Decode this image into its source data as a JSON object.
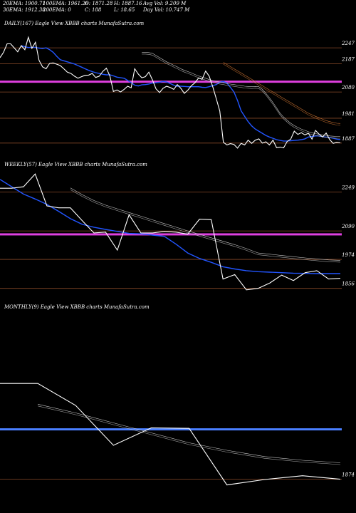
{
  "header": {
    "ema20": "20EMA: 1900.71",
    "ema100": "100EMA: 1961.26",
    "open": "O: 1871.28",
    "high": "H: 1887.16",
    "avg_vol": "Avg Vol: 9.209 M",
    "ema30": "30EMA: 1912.38",
    "ema200": "200EMA: 0",
    "close": "C: 188",
    "low": "L: 18.65",
    "day_vol": "Day Vol: 10.747 M"
  },
  "chart_data": [
    {
      "type": "line",
      "title": "DAILY(167) Eagle  View  XBBB charts MunafaSutra.com",
      "ylim": [
        1830,
        2320
      ],
      "reference_levels": [
        {
          "value": 2247,
          "label": "2247"
        },
        {
          "value": 2187,
          "label": "2187"
        },
        {
          "value": 2080,
          "label": "2080"
        },
        {
          "value": 1981,
          "label": "1981"
        },
        {
          "value": 1887,
          "label": "1887"
        }
      ],
      "highlight_level": {
        "value": 2119,
        "color": "#e040e0"
      },
      "series": [
        {
          "role": "price",
          "color": "#ffffff",
          "values": [
            2210,
            2230,
            2262,
            2262,
            2247,
            2232,
            2255,
            2240,
            2287,
            2245,
            2268,
            2200,
            2175,
            2168,
            2188,
            2190,
            2185,
            2180,
            2168,
            2155,
            2150,
            2140,
            2132,
            2138,
            2143,
            2144,
            2150,
            2135,
            2140,
            2158,
            2170,
            2140,
            2082,
            2088,
            2080,
            2090,
            2102,
            2096,
            2168,
            2148,
            2134,
            2138,
            2155,
            2126,
            2092,
            2078,
            2094,
            2102,
            2097,
            2090,
            2108,
            2094,
            2075,
            2087,
            2104,
            2115,
            2133,
            2128,
            2159,
            2140,
            2100,
            2055,
            2008,
            1890,
            1880,
            1885,
            1882,
            1868,
            1886,
            1880,
            1898,
            1886,
            1898,
            1903,
            1887,
            1892,
            1880,
            1898,
            1870,
            1872,
            1869,
            1893,
            1902,
            1932,
            1920,
            1926,
            1918,
            1924,
            1902,
            1935,
            1921,
            1910,
            1925,
            1900,
            1886,
            1890,
            1888
          ]
        },
        {
          "role": "ema20",
          "color": "#2255ff",
          "values": [
            2255,
            2251,
            2248,
            2249,
            2249,
            2246,
            2244,
            2247,
            2240,
            2230,
            2215,
            2202,
            2198,
            2194,
            2190,
            2186,
            2180,
            2174,
            2168,
            2162,
            2157,
            2153,
            2150,
            2147,
            2145,
            2145,
            2141,
            2136,
            2134,
            2132,
            2124,
            2115,
            2106,
            2103,
            2107,
            2108,
            2110,
            2114,
            2115,
            2117,
            2120,
            2118,
            2112,
            2106,
            2102,
            2102,
            2101,
            2100,
            2100,
            2100,
            2100,
            2098,
            2097,
            2100,
            2104,
            2108,
            2117,
            2120,
            2114,
            2098,
            2080,
            2048,
            2009,
            1988,
            1968,
            1952,
            1940,
            1932,
            1924,
            1916,
            1910,
            1905,
            1900,
            1897,
            1895,
            1895,
            1896,
            1897,
            1898,
            1900,
            1903,
            1910,
            1912,
            1914,
            1914,
            1911,
            1910,
            1908,
            1905,
            1902,
            1900
          ]
        },
        {
          "role": "ema30",
          "color": "#cccccc",
          "values": [
            2230,
            2230,
            2229,
            2226,
            2218,
            2210,
            2202,
            2194,
            2188,
            2181,
            2175,
            2168,
            2162,
            2157,
            2152,
            2146,
            2141,
            2136,
            2132,
            2127,
            2123,
            2120,
            2117,
            2115,
            2112,
            2110,
            2108,
            2106,
            2104,
            2102,
            2101,
            2100,
            2101,
            2100,
            2090,
            2075,
            2058,
            2040,
            2020,
            2000,
            1985,
            1973,
            1962,
            1953,
            1946,
            1940,
            1935,
            1930,
            1926,
            1923,
            1920,
            1918,
            1916,
            1914,
            1913,
            1912,
            1912
          ]
        },
        {
          "role": "ema100",
          "color": "#c87030",
          "values": [
            2192,
            2184,
            2176,
            2168,
            2160,
            2152,
            2144,
            2136,
            2128,
            2120,
            2112,
            2104,
            2096,
            2088,
            2080,
            2072,
            2064,
            2056,
            2048,
            2040,
            2032,
            2024,
            2016,
            2008,
            2000,
            1994,
            1988,
            1983,
            1977,
            1972,
            1968,
            1965,
            1962,
            1961
          ]
        }
      ]
    },
    {
      "type": "line",
      "title": "WEEKLY(57) Eagle  View  XBBB charts MunafaSutra.com",
      "ylim": [
        1800,
        2340
      ],
      "reference_levels": [
        {
          "value": 2249,
          "label": "2249"
        },
        {
          "value": 2090,
          "label": "2090"
        },
        {
          "value": 1974,
          "label": "1974"
        },
        {
          "value": 1856,
          "label": "1856"
        }
      ],
      "highlight_level": {
        "value": 2076,
        "color": "#e040e0"
      },
      "series": [
        {
          "role": "price",
          "color": "#ffffff",
          "values": [
            2264,
            2264,
            2270,
            2322,
            2192,
            2184,
            2184,
            2132,
            2082,
            2085,
            2012,
            2156,
            2082,
            2082,
            2088,
            2085,
            2077,
            2138,
            2136,
            1894,
            1912,
            1850,
            1856,
            1878,
            1910,
            1888,
            1920,
            1928,
            1894,
            1897
          ]
        },
        {
          "role": "ema20",
          "color": "#2255ff",
          "values": [
            2300,
            2270,
            2240,
            2220,
            2198,
            2170,
            2140,
            2117,
            2105,
            2096,
            2088,
            2080,
            2078,
            2073,
            2068,
            2036,
            2000,
            1978,
            1962,
            1944,
            1935,
            1928,
            1924,
            1922,
            1920,
            1918,
            1917,
            1916,
            1916,
            1916
          ]
        },
        {
          "role": "ema30",
          "color": "#cccccc",
          "values": [
            2265,
            2238,
            2214,
            2195,
            2180,
            2165,
            2150,
            2135,
            2120,
            2105,
            2090,
            2076,
            2062,
            2048,
            2034,
            2018,
            2000,
            1995,
            1990,
            1985,
            1980,
            1976,
            1972,
            1970
          ]
        }
      ]
    },
    {
      "type": "line",
      "title": "MONTHLY(9) Eagle  View  XBBB charts MunafaSutra.com",
      "ylim": [
        1750,
        2550
      ],
      "reference_levels": [
        {
          "value": 1874,
          "label": "1874"
        }
      ],
      "highlight_level": {
        "value": 2074,
        "color": "#4a7fff"
      },
      "series": [
        {
          "role": "price",
          "color": "#ffffff",
          "values": [
            2258,
            2258,
            2170,
            2010,
            2080,
            2078,
            1851,
            1873,
            1888,
            1874
          ]
        },
        {
          "role": "ema20",
          "color": "#cccccc",
          "values": [
            2175,
            2140,
            2100,
            2060,
            2020,
            1990,
            1965,
            1950,
            1940
          ]
        }
      ]
    }
  ]
}
